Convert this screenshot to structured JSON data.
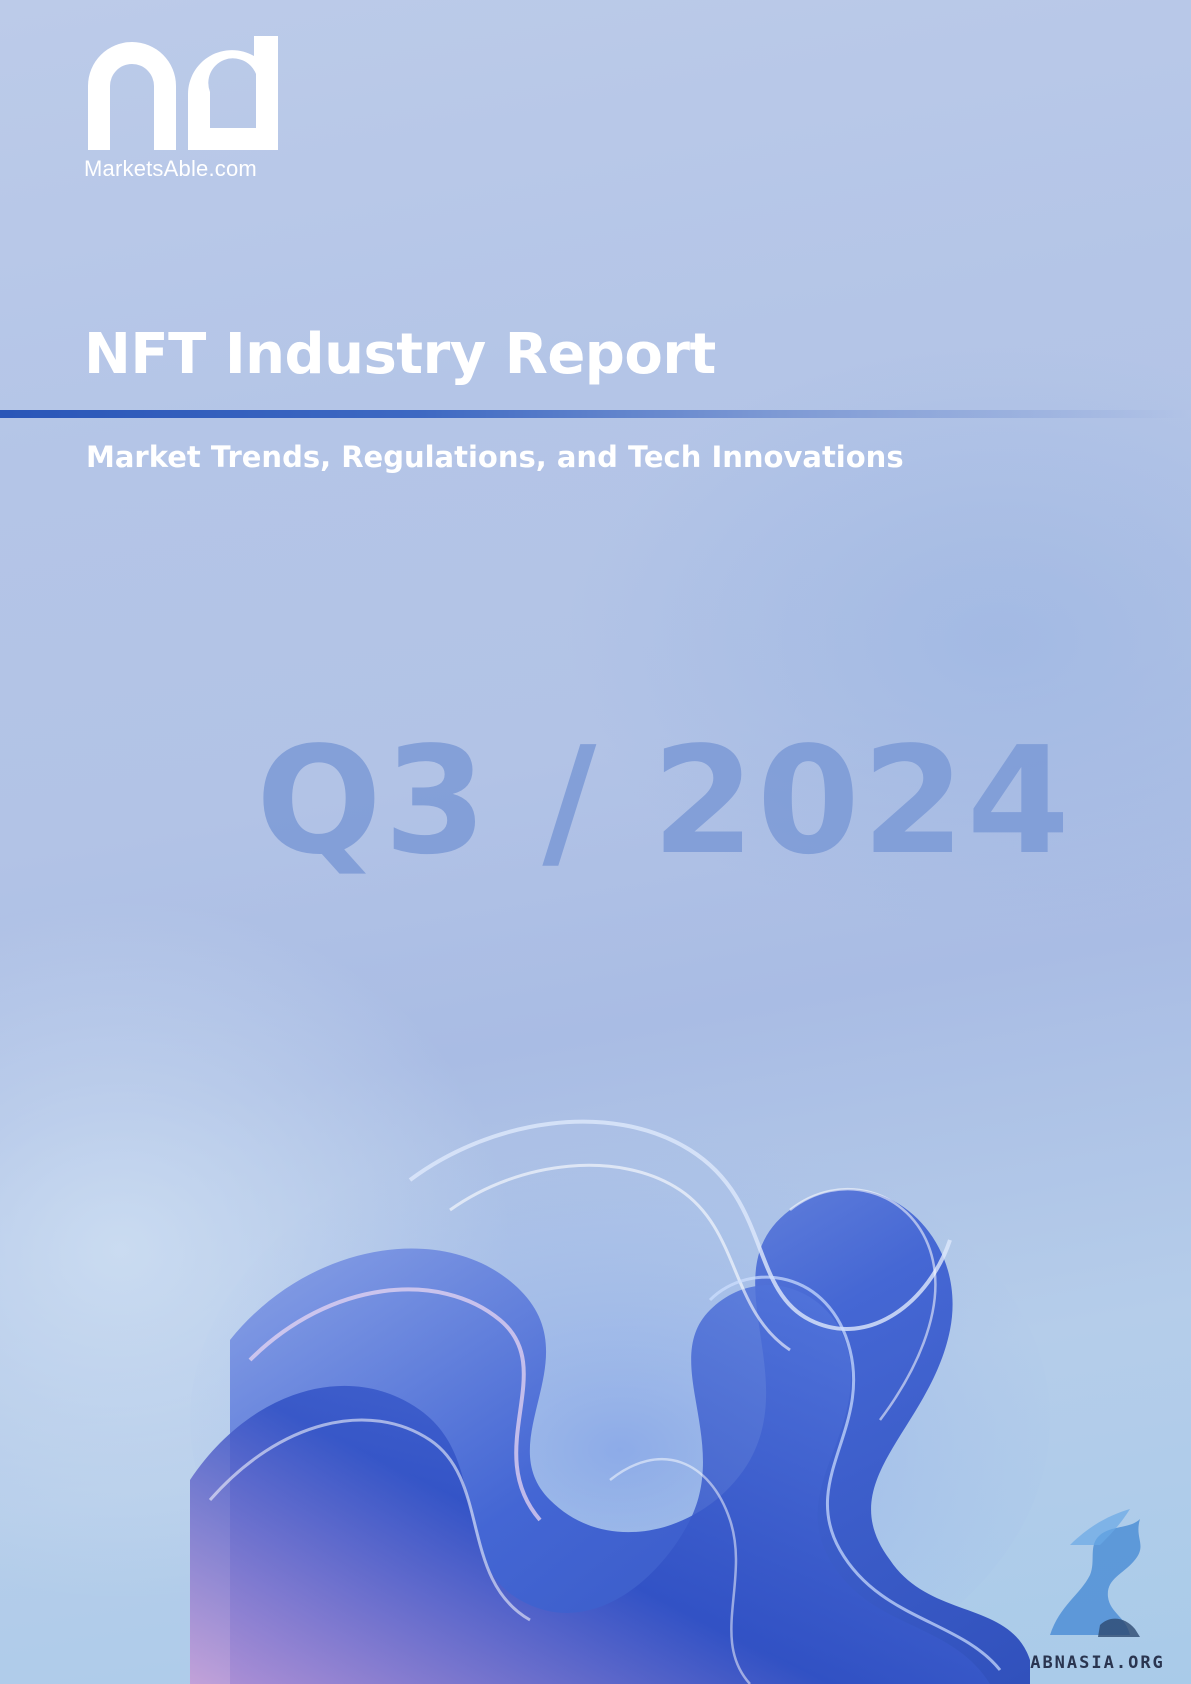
{
  "brand": {
    "name": "MarketsAble.com",
    "logo_icon": "md-monogram-logo"
  },
  "report": {
    "title": "NFT Industry Report",
    "subtitle": "Market Trends, Regulations, and Tech Innovations",
    "period": "Q3 / 2024"
  },
  "watermark": {
    "text": "ABNASIA.ORG",
    "icon": "griffin-icon"
  },
  "colors": {
    "background": "#b2c3e6",
    "accent_rule": "#2a56b8",
    "period_text": "#7c9ad6",
    "swirl_blue": "#3b5fd0"
  }
}
